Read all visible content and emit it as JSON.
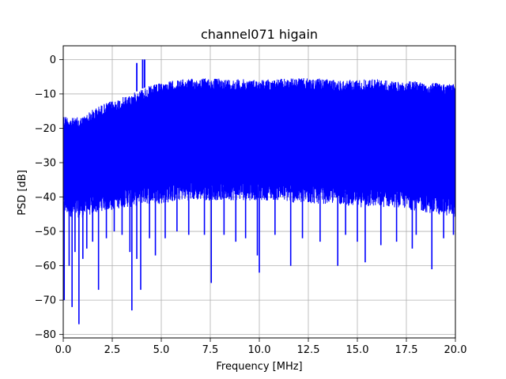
{
  "chart_data": {
    "type": "line",
    "title": "channel071 higain",
    "xlabel": "Frequency [MHz]",
    "ylabel": "PSD [dB]",
    "xlim": [
      0,
      20
    ],
    "ylim": [
      -81,
      4
    ],
    "xticks": [
      0,
      2.5,
      5,
      7.5,
      10,
      12.5,
      15,
      17.5,
      20
    ],
    "xtick_labels": [
      "0.0",
      "2.5",
      "5.0",
      "7.5",
      "10.0",
      "12.5",
      "15.0",
      "17.5",
      "20.0"
    ],
    "yticks": [
      0,
      -10,
      -20,
      -30,
      -40,
      -50,
      -60,
      -70,
      -80
    ],
    "ytick_labels": [
      "0",
      "−10",
      "−20",
      "−30",
      "−40",
      "−50",
      "−60",
      "−70",
      "−80"
    ],
    "grid": true,
    "series": [
      {
        "color": "#0000ff",
        "envelope_x": [
          0,
          0.5,
          1,
          1.5,
          2,
          2.5,
          3,
          3.5,
          4,
          4.5,
          5,
          5.5,
          6,
          7,
          8,
          9,
          10,
          11,
          12,
          13,
          14,
          15,
          16,
          17,
          18,
          19,
          20
        ],
        "envelope_upper": [
          -16,
          -17,
          -16.5,
          -14.5,
          -13,
          -12,
          -11,
          -10,
          -8.5,
          -7.5,
          -6.8,
          -6.2,
          -5.8,
          -5.4,
          -5.5,
          -5.7,
          -5.8,
          -5.6,
          -5.4,
          -5.5,
          -6,
          -5.8,
          -5.6,
          -6.5,
          -6.2,
          -6.8,
          -7
        ],
        "envelope_lower_floor": [
          -45,
          -46,
          -46,
          -45,
          -44,
          -44,
          -43,
          -43,
          -42,
          -42,
          -42,
          -41.5,
          -41,
          -41,
          -41,
          -41,
          -41,
          -41,
          -42,
          -42,
          -42,
          -43,
          -43,
          -43,
          -44,
          -45,
          -46
        ],
        "peaks": [
          {
            "x": 3.75,
            "y": -1
          },
          {
            "x": 4.05,
            "y": 0
          },
          {
            "x": 4.15,
            "y": 0
          }
        ],
        "dips": [
          {
            "x": 0.05,
            "y": -70
          },
          {
            "x": 0.3,
            "y": -60
          },
          {
            "x": 0.45,
            "y": -72
          },
          {
            "x": 0.6,
            "y": -56
          },
          {
            "x": 0.8,
            "y": -77
          },
          {
            "x": 1.0,
            "y": -58
          },
          {
            "x": 1.2,
            "y": -55
          },
          {
            "x": 1.5,
            "y": -53
          },
          {
            "x": 1.8,
            "y": -67
          },
          {
            "x": 2.2,
            "y": -52
          },
          {
            "x": 2.6,
            "y": -50
          },
          {
            "x": 3.0,
            "y": -51
          },
          {
            "x": 3.4,
            "y": -56
          },
          {
            "x": 3.5,
            "y": -73
          },
          {
            "x": 3.75,
            "y": -58
          },
          {
            "x": 3.95,
            "y": -67
          },
          {
            "x": 4.4,
            "y": -52
          },
          {
            "x": 4.7,
            "y": -57
          },
          {
            "x": 5.2,
            "y": -52
          },
          {
            "x": 5.8,
            "y": -50
          },
          {
            "x": 6.4,
            "y": -51
          },
          {
            "x": 7.2,
            "y": -51
          },
          {
            "x": 7.55,
            "y": -65
          },
          {
            "x": 8.2,
            "y": -51
          },
          {
            "x": 8.8,
            "y": -53
          },
          {
            "x": 9.3,
            "y": -52
          },
          {
            "x": 9.9,
            "y": -57
          },
          {
            "x": 10.0,
            "y": -62
          },
          {
            "x": 10.8,
            "y": -51
          },
          {
            "x": 11.6,
            "y": -60
          },
          {
            "x": 12.2,
            "y": -52
          },
          {
            "x": 13.1,
            "y": -53
          },
          {
            "x": 14.0,
            "y": -60
          },
          {
            "x": 14.4,
            "y": -51
          },
          {
            "x": 15.0,
            "y": -53
          },
          {
            "x": 15.4,
            "y": -59
          },
          {
            "x": 16.2,
            "y": -54
          },
          {
            "x": 17.0,
            "y": -53
          },
          {
            "x": 17.8,
            "y": -55
          },
          {
            "x": 18.0,
            "y": -51
          },
          {
            "x": 18.8,
            "y": -61
          },
          {
            "x": 19.4,
            "y": -52
          },
          {
            "x": 19.9,
            "y": -51
          }
        ]
      }
    ]
  }
}
